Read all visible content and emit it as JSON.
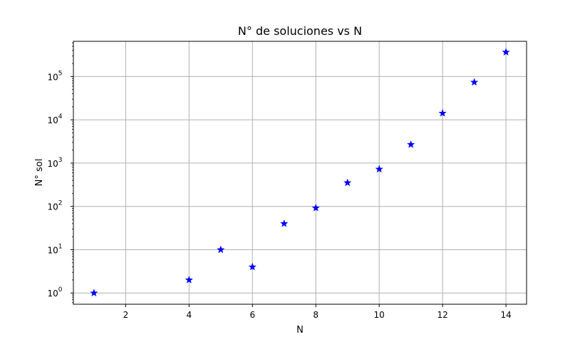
{
  "chart_data": {
    "type": "scatter",
    "title": "N° de soluciones vs N",
    "xlabel": "N",
    "ylabel": "N° sol",
    "x_scale": "linear",
    "y_scale": "log",
    "xlim": [
      0.35,
      14.65
    ],
    "ylim": [
      0.55,
      650000
    ],
    "x_ticks": [
      2,
      4,
      6,
      8,
      10,
      12,
      14
    ],
    "y_ticks": [
      1,
      10,
      100,
      1000,
      10000,
      100000
    ],
    "y_tick_labels": [
      {
        "base": "10",
        "exp": "0"
      },
      {
        "base": "10",
        "exp": "1"
      },
      {
        "base": "10",
        "exp": "2"
      },
      {
        "base": "10",
        "exp": "3"
      },
      {
        "base": "10",
        "exp": "4"
      },
      {
        "base": "10",
        "exp": "5"
      }
    ],
    "grid": true,
    "marker": "star",
    "color": "#0000ff",
    "points": [
      {
        "x": 1,
        "y": 1
      },
      {
        "x": 4,
        "y": 2
      },
      {
        "x": 5,
        "y": 10
      },
      {
        "x": 6,
        "y": 4
      },
      {
        "x": 7,
        "y": 40
      },
      {
        "x": 8,
        "y": 92
      },
      {
        "x": 9,
        "y": 352
      },
      {
        "x": 10,
        "y": 724
      },
      {
        "x": 11,
        "y": 2680
      },
      {
        "x": 12,
        "y": 14200
      },
      {
        "x": 13,
        "y": 73712
      },
      {
        "x": 14,
        "y": 365596
      }
    ]
  }
}
